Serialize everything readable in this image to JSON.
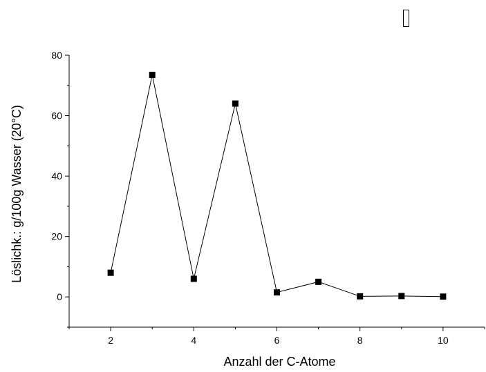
{
  "chart_data": {
    "type": "line",
    "title": "",
    "xlabel": "Anzahl der C-Atome",
    "ylabel": "Löslichk.: g/100g Wasser (20°C)",
    "x": [
      2,
      3,
      4,
      5,
      6,
      7,
      8,
      9,
      10
    ],
    "series": [
      {
        "values": [
          8,
          73.5,
          6,
          64,
          1.5,
          5,
          0.2,
          0.3,
          0.1
        ]
      }
    ],
    "xlim": [
      1,
      11
    ],
    "ylim": [
      -10,
      80
    ],
    "xticks": [
      2,
      4,
      6,
      8,
      10
    ],
    "yticks": [
      0,
      20,
      40,
      60,
      80
    ],
    "grid": false,
    "marker": "square",
    "line_color": "#000000"
  },
  "extra_glyph": "▯"
}
